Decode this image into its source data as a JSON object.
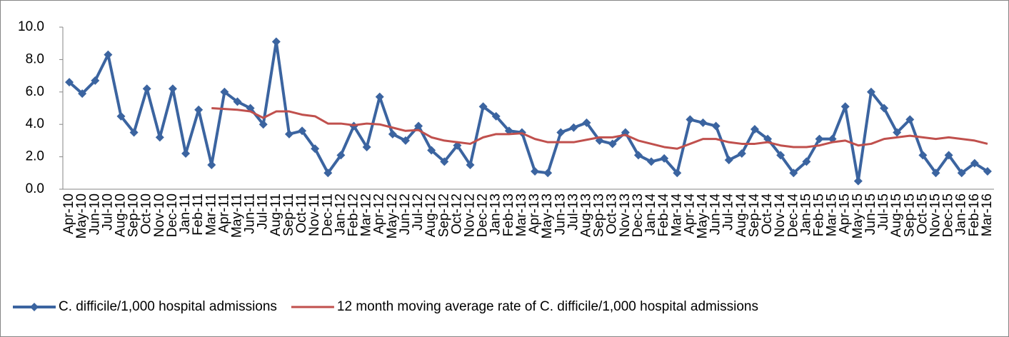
{
  "chart_data": {
    "type": "line",
    "categories": [
      "Apr-10",
      "May-10",
      "Jun-10",
      "Jul-10",
      "Aug-10",
      "Sep-10",
      "Oct-10",
      "Nov-10",
      "Dec-10",
      "Jan-11",
      "Feb-11",
      "Mar-11",
      "Apr-11",
      "May-11",
      "Jun-11",
      "Jul-11",
      "Aug-11",
      "Sep-11",
      "Oct-11",
      "Nov-11",
      "Dec-11",
      "Jan-12",
      "Feb-12",
      "Mar-12",
      "Apr-12",
      "May-12",
      "Jun-12",
      "Jul-12",
      "Aug-12",
      "Sep-12",
      "Oct-12",
      "Nov-12",
      "Dec-12",
      "Jan-13",
      "Feb-13",
      "Mar-13",
      "Apr-13",
      "May-13",
      "Jun-13",
      "Jul-13",
      "Aug-13",
      "Sep-13",
      "Oct-13",
      "Nov-13",
      "Dec-13",
      "Jan-14",
      "Feb-14",
      "Mar-14",
      "Apr-14",
      "May-14",
      "Jun-14",
      "Jul-14",
      "Aug-14",
      "Sep-14",
      "Oct-14",
      "Nov-14",
      "Dec-14",
      "Jan-15",
      "Feb-15",
      "Mar-15",
      "Apr-15",
      "May-15",
      "Jun-15",
      "Jul-15",
      "Aug-15",
      "Sep-15",
      "Oct-15",
      "Nov-15",
      "Dec-15",
      "Jan-16",
      "Feb-16",
      "Mar-16"
    ],
    "series": [
      {
        "name": "C. difficile/1,000 hospital admissions",
        "color": "#3b64a0",
        "marker": "diamond",
        "values": [
          6.6,
          5.9,
          6.7,
          8.3,
          4.5,
          3.5,
          6.2,
          3.2,
          6.2,
          2.2,
          4.9,
          1.5,
          6.0,
          5.4,
          5.0,
          4.0,
          9.1,
          3.4,
          3.6,
          2.5,
          1.0,
          2.1,
          3.9,
          2.6,
          5.7,
          3.4,
          3.0,
          3.9,
          2.4,
          1.7,
          2.7,
          1.5,
          5.1,
          4.5,
          3.6,
          3.5,
          1.1,
          1.0,
          3.5,
          3.8,
          4.1,
          3.0,
          2.8,
          3.5,
          2.1,
          1.7,
          1.9,
          1.0,
          4.3,
          4.1,
          3.9,
          1.8,
          2.2,
          3.7,
          3.1,
          2.1,
          1.0,
          1.7,
          3.1,
          3.1,
          5.1,
          0.5,
          6.0,
          5.0,
          3.5,
          4.3,
          2.1,
          1.0,
          2.1,
          1.0,
          1.6,
          1.1
        ]
      },
      {
        "name": "12 month moving average rate of C. difficile/1,000 hospital admissions",
        "color": "#c0504d",
        "values": [
          null,
          null,
          null,
          null,
          null,
          null,
          null,
          null,
          null,
          null,
          null,
          5.0,
          4.95,
          4.9,
          4.8,
          4.4,
          4.8,
          4.8,
          4.6,
          4.5,
          4.05,
          4.05,
          3.95,
          4.05,
          4.0,
          3.8,
          3.6,
          3.65,
          3.2,
          3.0,
          2.9,
          2.8,
          3.2,
          3.4,
          3.4,
          3.45,
          3.1,
          2.9,
          2.9,
          2.9,
          3.05,
          3.2,
          3.2,
          3.35,
          3.0,
          2.8,
          2.6,
          2.5,
          2.8,
          3.1,
          3.1,
          2.9,
          2.8,
          2.8,
          2.9,
          2.7,
          2.6,
          2.6,
          2.7,
          2.9,
          3.0,
          2.7,
          2.8,
          3.1,
          3.2,
          3.3,
          3.2,
          3.1,
          3.2,
          3.1,
          3.0,
          2.8
        ]
      }
    ],
    "ylim": [
      0,
      10
    ],
    "yticks": [
      {
        "value": 0,
        "label": "0.0"
      },
      {
        "value": 2,
        "label": "2.0"
      },
      {
        "value": 4,
        "label": "4.0"
      },
      {
        "value": 6,
        "label": "6.0"
      },
      {
        "value": 8,
        "label": "8.0"
      },
      {
        "value": 10,
        "label": "10.0"
      }
    ],
    "grid": false,
    "legend": "bottom"
  }
}
